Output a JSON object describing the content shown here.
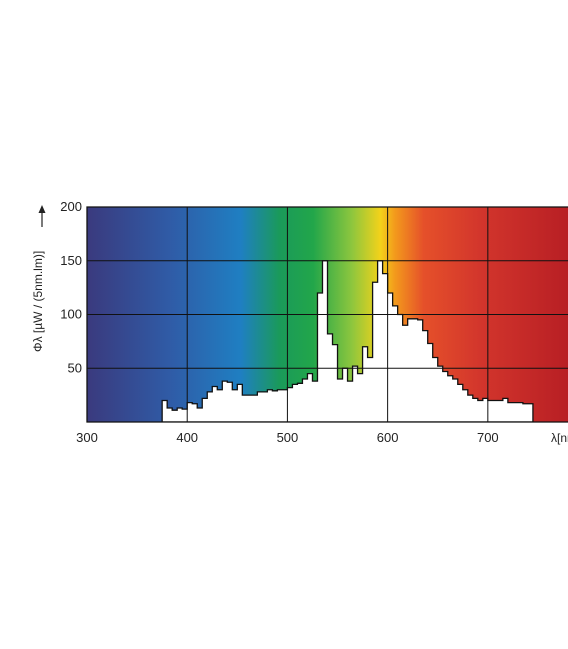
{
  "chart_data": {
    "type": "area",
    "title": "",
    "ylabel": "Φλ [µW / (5nm.lm)]",
    "xlabel": "λ[nm]",
    "xlim": [
      300,
      780
    ],
    "ylim": [
      0,
      200
    ],
    "x_ticks": [
      300,
      400,
      500,
      600,
      700
    ],
    "y_ticks": [
      50,
      100,
      150,
      200
    ],
    "grid": true,
    "background": "visible-spectrum color gradient (violet to red)",
    "spectrum_colors": [
      "#3a3a7e",
      "#2f5da8",
      "#1f7fc2",
      "#1a9a5a",
      "#22a64a",
      "#8cc63e",
      "#f3d21a",
      "#f39a1c",
      "#e5502a",
      "#d2352c",
      "#b81f24"
    ],
    "area_color": "#ffffff",
    "series": [
      {
        "values_step": [
          [
            375,
            20
          ],
          [
            380,
            13
          ],
          [
            385,
            11
          ],
          [
            390,
            13
          ],
          [
            395,
            12
          ],
          [
            400,
            18
          ],
          [
            405,
            17
          ],
          [
            410,
            13
          ],
          [
            415,
            22
          ],
          [
            420,
            28
          ],
          [
            425,
            33
          ],
          [
            430,
            30
          ],
          [
            435,
            38
          ],
          [
            440,
            37
          ],
          [
            445,
            30
          ],
          [
            450,
            35
          ],
          [
            455,
            25
          ],
          [
            460,
            25
          ],
          [
            465,
            25
          ],
          [
            470,
            28
          ],
          [
            475,
            28
          ],
          [
            480,
            30
          ],
          [
            485,
            29
          ],
          [
            490,
            30
          ],
          [
            495,
            30
          ],
          [
            500,
            32
          ],
          [
            505,
            35
          ],
          [
            510,
            36
          ],
          [
            515,
            40
          ],
          [
            520,
            45
          ],
          [
            525,
            38
          ],
          [
            530,
            120
          ],
          [
            535,
            150
          ],
          [
            540,
            82
          ],
          [
            545,
            72
          ],
          [
            550,
            40
          ],
          [
            555,
            50
          ],
          [
            560,
            38
          ],
          [
            565,
            52
          ],
          [
            570,
            45
          ],
          [
            575,
            70
          ],
          [
            580,
            60
          ],
          [
            585,
            130
          ],
          [
            590,
            150
          ],
          [
            595,
            138
          ],
          [
            600,
            120
          ],
          [
            605,
            108
          ],
          [
            610,
            100
          ],
          [
            615,
            90
          ],
          [
            620,
            96
          ],
          [
            625,
            96
          ],
          [
            630,
            95
          ],
          [
            635,
            85
          ],
          [
            640,
            73
          ],
          [
            645,
            60
          ],
          [
            650,
            52
          ],
          [
            655,
            47
          ],
          [
            660,
            43
          ],
          [
            665,
            40
          ],
          [
            670,
            35
          ],
          [
            675,
            30
          ],
          [
            680,
            25
          ],
          [
            685,
            22
          ],
          [
            690,
            20
          ],
          [
            695,
            22
          ],
          [
            700,
            20
          ],
          [
            705,
            20
          ],
          [
            710,
            20
          ],
          [
            715,
            22
          ],
          [
            720,
            18
          ],
          [
            725,
            18
          ],
          [
            730,
            18
          ],
          [
            735,
            17
          ],
          [
            740,
            17
          ],
          [
            745,
            0
          ]
        ]
      }
    ]
  }
}
